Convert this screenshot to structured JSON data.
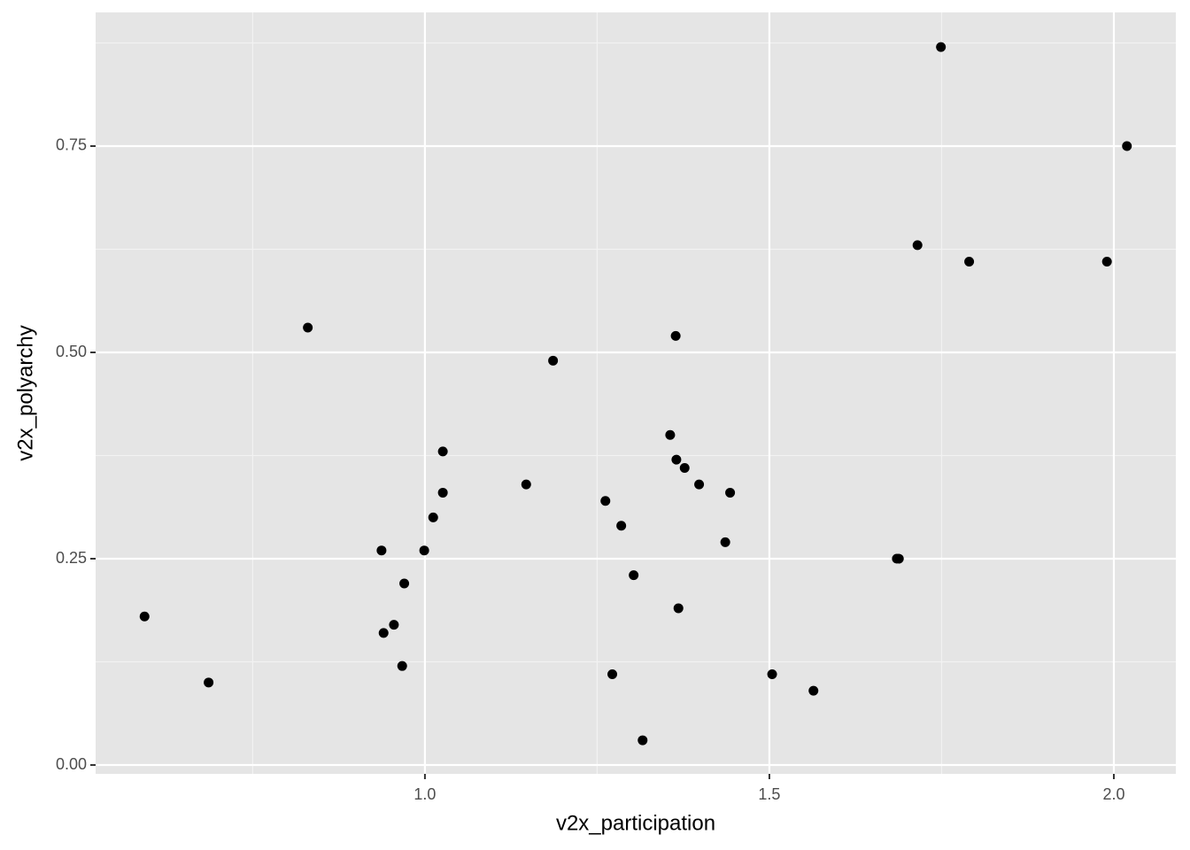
{
  "chart_data": {
    "type": "scatter",
    "x_label": "v2x_participation",
    "y_label": "v2x_polyarchy",
    "x": [
      0.593,
      0.686,
      0.83,
      0.937,
      0.94,
      0.955,
      0.967,
      0.97,
      0.999,
      1.012,
      1.026,
      1.026,
      1.147,
      1.186,
      1.262,
      1.272,
      1.285,
      1.303,
      1.316,
      1.356,
      1.364,
      1.365,
      1.368,
      1.377,
      1.398,
      1.436,
      1.443,
      1.504,
      1.564,
      1.685,
      1.688,
      1.715,
      1.749,
      1.79,
      1.99,
      2.019
    ],
    "values": [
      0.18,
      0.1,
      0.53,
      0.26,
      0.16,
      0.17,
      0.12,
      0.22,
      0.26,
      0.3,
      0.38,
      0.33,
      0.34,
      0.49,
      0.32,
      0.11,
      0.29,
      0.23,
      0.03,
      0.4,
      0.52,
      0.37,
      0.19,
      0.36,
      0.34,
      0.27,
      0.33,
      0.11,
      0.09,
      0.25,
      0.25,
      0.63,
      0.87,
      0.61,
      0.61,
      0.75
    ],
    "color": "#000000",
    "xlim": [
      0.522,
      2.09
    ],
    "ylim": [
      -0.0107,
      0.912
    ],
    "xticks": [
      {
        "value": 1.0,
        "label": "1.0"
      },
      1.5,
      {
        "value": 2.0,
        "label": "2.0"
      }
    ],
    "yticks": [
      {
        "value": 0,
        "label": "0.00"
      },
      0.25,
      {
        "value": 0.5,
        "label": "0.50"
      },
      0.75
    ],
    "minor_xticks": [
      0.75,
      1.25,
      1.75
    ],
    "minor_yticks": [
      0.125,
      0.375,
      0.625,
      0.875
    ],
    "grid": true
  }
}
